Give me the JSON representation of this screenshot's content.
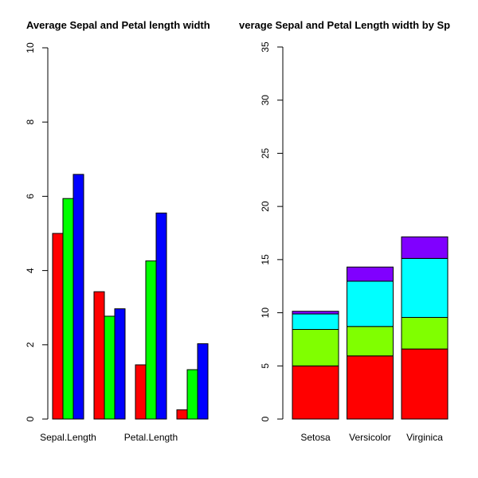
{
  "chart_data": [
    {
      "type": "bar",
      "title": "Average Sepal and Petal length width",
      "categories": [
        "Sepal.Length",
        null,
        "Petal.Length",
        null
      ],
      "series": [
        {
          "color": "#ff0000",
          "values": [
            5.0,
            3.43,
            1.46,
            0.25
          ]
        },
        {
          "color": "#00ff00",
          "values": [
            5.94,
            2.77,
            4.26,
            1.33
          ]
        },
        {
          "color": "#0000ff",
          "values": [
            6.59,
            2.97,
            5.55,
            2.03
          ]
        }
      ],
      "ylim": [
        0,
        10
      ],
      "yticks": [
        0,
        2,
        4,
        6,
        8,
        10
      ]
    },
    {
      "type": "stacked_bar",
      "title": "verage Sepal and Petal Length width by Sp",
      "categories": [
        "Setosa",
        "Versicolor",
        "Virginica"
      ],
      "series": [
        {
          "color": "#ff0000",
          "values": [
            5.0,
            5.94,
            6.59
          ]
        },
        {
          "color": "#80ff00",
          "values": [
            3.43,
            2.77,
            2.97
          ]
        },
        {
          "color": "#00ffff",
          "values": [
            1.46,
            4.26,
            5.55
          ]
        },
        {
          "color": "#8000ff",
          "values": [
            0.25,
            1.33,
            2.03
          ]
        }
      ],
      "ylim": [
        0,
        35
      ],
      "yticks": [
        0,
        5,
        10,
        15,
        20,
        25,
        30,
        35
      ]
    }
  ]
}
